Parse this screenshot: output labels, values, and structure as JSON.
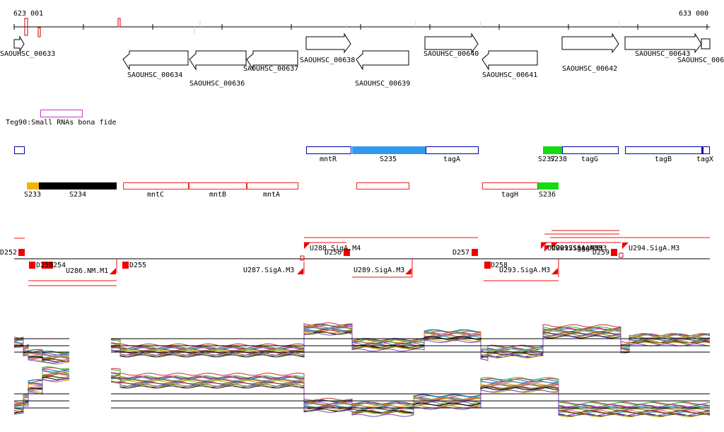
{
  "ruler": {
    "start": "623 001",
    "end": "633 000"
  },
  "genes": [
    {
      "name": "SAOUHSC_00633",
      "strand": "+"
    },
    {
      "name": "SAOUHSC_00634",
      "strand": "-"
    },
    {
      "name": "SAOUHSC_00636",
      "strand": "-"
    },
    {
      "name": "SAOUHSC_00637",
      "strand": "-"
    },
    {
      "name": "SAOUHSC_00638",
      "strand": "+"
    },
    {
      "name": "SAOUHSC_00639",
      "strand": "-"
    },
    {
      "name": "SAOUHSC_00640",
      "strand": "+"
    },
    {
      "name": "SAOUHSC_00641",
      "strand": "-"
    },
    {
      "name": "SAOUHSC_00642",
      "strand": "+"
    },
    {
      "name": "SAOUHSC_00643",
      "strand": "+"
    },
    {
      "name": "SAOUHSC_006",
      "strand": "+"
    }
  ],
  "small_rna": {
    "label": "Teg90:Small RNAs bona fide"
  },
  "plus_features": [
    {
      "name": "mntR"
    },
    {
      "name": "S235"
    },
    {
      "name": "tagA"
    },
    {
      "name": "S237"
    },
    {
      "name": "S238"
    },
    {
      "name": "tagG"
    },
    {
      "name": "tagB"
    },
    {
      "name": "tagX"
    }
  ],
  "minus_features": [
    {
      "name": "S233"
    },
    {
      "name": "S234"
    },
    {
      "name": "mntC"
    },
    {
      "name": "mntB"
    },
    {
      "name": "mntA"
    },
    {
      "name": "tagH"
    },
    {
      "name": "S236"
    }
  ],
  "tss_labels": [
    {
      "name": "D252"
    },
    {
      "name": "D253"
    },
    {
      "name": "D254"
    },
    {
      "name": "U286.NM.M1"
    },
    {
      "name": "D255"
    },
    {
      "name": "U287.SigA.M3"
    },
    {
      "name": "U288.SigA.M4"
    },
    {
      "name": "D256"
    },
    {
      "name": "U289.SigA.M3"
    },
    {
      "name": "D257"
    },
    {
      "name": "D258"
    },
    {
      "name": "U293.SigA.M3"
    },
    {
      "name": "U290.SigA.M3"
    },
    {
      "name": "U291.SigA.M3"
    },
    {
      "name": "U292.SigA.M3"
    },
    {
      "name": "D259"
    },
    {
      "name": "U294.SigA.M3"
    }
  ],
  "colors": {
    "gene_outline": "#000000",
    "plus_feature": "#0000aa",
    "plus_feature_fill": "#3399ee",
    "minus_feature": "#ee2222",
    "s233": "#f2b400",
    "s234": "#000000",
    "green": "#11dd11",
    "tss": "#ff0000",
    "small_rna": "#cc33cc"
  }
}
